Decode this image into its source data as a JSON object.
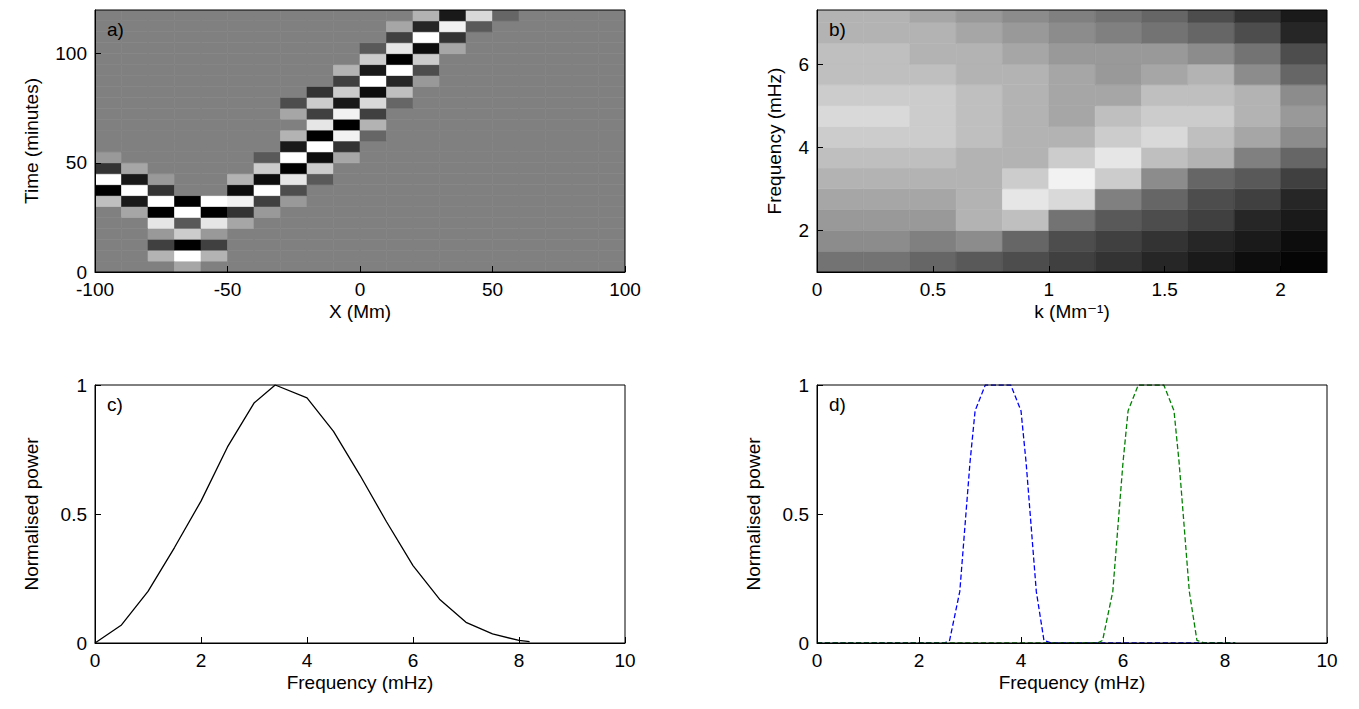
{
  "chart_data": [
    {
      "type": "heatmap",
      "panel": "a)",
      "xlabel": "X (Mm)",
      "ylabel": "Time (minutes)",
      "xlim": [
        -100,
        100
      ],
      "ylim": [
        0,
        120
      ],
      "xticks": [
        -100,
        -50,
        0,
        50,
        100
      ],
      "yticks": [
        0,
        50,
        100
      ],
      "grid": false,
      "zlim": [
        -1,
        1
      ],
      "x": [
        -95,
        -85,
        -75,
        -65,
        -55,
        -45,
        -35,
        -25,
        -15,
        -5,
        5,
        15,
        25,
        35,
        45,
        55,
        65,
        75,
        85,
        95
      ],
      "y": [
        2.5,
        7.5,
        12.5,
        17.5,
        22.5,
        27.5,
        32.5,
        37.5,
        42.5,
        47.5,
        52.5,
        57.5,
        62.5,
        67.5,
        72.5,
        77.5,
        82.5,
        87.5,
        92.5,
        97.5,
        102.5,
        107.5,
        112.5,
        117.5
      ],
      "z": [
        [
          0,
          0,
          0,
          0.3,
          0,
          0,
          0,
          0,
          0,
          0,
          0,
          0,
          0,
          0,
          0,
          0,
          0,
          0,
          0,
          0
        ],
        [
          0,
          0,
          0.4,
          1,
          0.4,
          0,
          0,
          0,
          0,
          0,
          0,
          0,
          0,
          0,
          0,
          0,
          0,
          0,
          0,
          0
        ],
        [
          0,
          0,
          -0.5,
          -1,
          -0.5,
          0,
          0,
          0,
          0,
          0,
          0,
          0,
          0,
          0,
          0,
          0,
          0,
          0,
          0,
          0
        ],
        [
          0,
          0,
          0.2,
          0.6,
          0.2,
          0,
          0,
          0,
          0,
          0,
          0,
          0,
          0,
          0,
          0,
          0,
          0,
          0,
          0,
          0
        ],
        [
          0,
          0,
          0.8,
          -0.3,
          0.8,
          0.3,
          0,
          0,
          0,
          0,
          0,
          0,
          0,
          0,
          0,
          0,
          0,
          0,
          0,
          0
        ],
        [
          0,
          0.3,
          -1,
          1,
          -1,
          -0.6,
          0.2,
          0,
          0,
          0,
          0,
          0,
          0,
          0,
          0,
          0,
          0,
          0,
          0,
          0
        ],
        [
          0.5,
          -0.8,
          1,
          -1,
          1,
          0.9,
          -0.5,
          0.2,
          0,
          0,
          0,
          0,
          0,
          0,
          0,
          0,
          0,
          0,
          0,
          0
        ],
        [
          -1,
          1,
          -0.6,
          0,
          0,
          -0.9,
          1,
          -0.4,
          0,
          0,
          0,
          0,
          0,
          0,
          0,
          0,
          0,
          0,
          0,
          0
        ],
        [
          1,
          -0.8,
          0.2,
          0,
          0,
          0.4,
          -0.9,
          0.8,
          -0.3,
          0,
          0,
          0,
          0,
          0,
          0,
          0,
          0,
          0,
          0,
          0
        ],
        [
          -0.6,
          0.3,
          0,
          0,
          0,
          0,
          0.6,
          -1,
          0.6,
          0,
          0,
          0,
          0,
          0,
          0,
          0,
          0,
          0,
          0,
          0
        ],
        [
          0.2,
          0,
          0,
          0,
          0,
          0,
          -0.3,
          1,
          -0.9,
          0.3,
          0,
          0,
          0,
          0,
          0,
          0,
          0,
          0,
          0,
          0
        ],
        [
          0,
          0,
          0,
          0,
          0,
          0,
          0,
          -0.8,
          1,
          -0.6,
          0,
          0,
          0,
          0,
          0,
          0,
          0,
          0,
          0,
          0
        ],
        [
          0,
          0,
          0,
          0,
          0,
          0,
          0,
          0.4,
          -1,
          0.9,
          -0.2,
          0,
          0,
          0,
          0,
          0,
          0,
          0,
          0,
          0
        ],
        [
          0,
          0,
          0,
          0,
          0,
          0,
          0,
          0,
          0.8,
          -1,
          0.4,
          0,
          0,
          0,
          0,
          0,
          0,
          0,
          0,
          0
        ],
        [
          0,
          0,
          0,
          0,
          0,
          0,
          0,
          0.3,
          -0.5,
          0.9,
          -0.5,
          0,
          0,
          0,
          0,
          0,
          0,
          0,
          0,
          0
        ],
        [
          0,
          0,
          0,
          0,
          0,
          0,
          0,
          -0.4,
          0.6,
          -0.8,
          0.7,
          -0.2,
          0,
          0,
          0,
          0,
          0,
          0,
          0,
          0
        ],
        [
          0,
          0,
          0,
          0,
          0,
          0,
          0,
          0,
          -0.6,
          0.6,
          -0.9,
          0.5,
          0,
          0,
          0,
          0,
          0,
          0,
          0,
          0
        ],
        [
          0,
          0,
          0,
          0,
          0,
          0,
          0,
          0,
          0,
          -0.5,
          1,
          -0.7,
          0.2,
          0,
          0,
          0,
          0,
          0,
          0,
          0
        ],
        [
          0,
          0,
          0,
          0,
          0,
          0,
          0,
          0,
          0,
          0.4,
          -0.8,
          1,
          -0.4,
          0,
          0,
          0,
          0,
          0,
          0,
          0
        ],
        [
          0,
          0,
          0,
          0,
          0,
          0,
          0,
          0,
          0,
          0,
          0.6,
          -1,
          0.6,
          0,
          0,
          0,
          0,
          0,
          0,
          0
        ],
        [
          0,
          0,
          0,
          0,
          0,
          0,
          0,
          0,
          0,
          0,
          -0.3,
          0.8,
          -0.9,
          0.3,
          0,
          0,
          0,
          0,
          0,
          0
        ],
        [
          0,
          0,
          0,
          0,
          0,
          0,
          0,
          0,
          0,
          0,
          0,
          -0.5,
          1,
          -0.6,
          0,
          0,
          0,
          0,
          0,
          0
        ],
        [
          0,
          0,
          0,
          0,
          0,
          0,
          0,
          0,
          0,
          0,
          0,
          0.3,
          -0.7,
          0.9,
          -0.3,
          0,
          0,
          0,
          0,
          0
        ],
        [
          0,
          0,
          0,
          0,
          0,
          0,
          0,
          0,
          0,
          0,
          0,
          0,
          0.4,
          -0.8,
          0.7,
          -0.2,
          0,
          0,
          0,
          0
        ]
      ]
    },
    {
      "type": "heatmap",
      "panel": "b)",
      "xlabel": "k (Mm⁻¹)",
      "ylabel": "Frequency (mHz)",
      "xlim": [
        0,
        2.2
      ],
      "ylim": [
        1,
        7.3
      ],
      "xticks": [
        0,
        0.5,
        1,
        1.5,
        2
      ],
      "yticks": [
        2,
        4,
        6
      ],
      "grid": false,
      "zlim": [
        0,
        1
      ],
      "x": [
        0.1,
        0.3,
        0.5,
        0.7,
        0.9,
        1.1,
        1.3,
        1.5,
        1.7,
        1.9,
        2.1
      ],
      "y": [
        1.25,
        1.75,
        2.25,
        2.75,
        3.25,
        3.75,
        4.25,
        4.75,
        5.25,
        5.75,
        6.25,
        6.75,
        7.25
      ],
      "z": [
        [
          0.45,
          0.45,
          0.4,
          0.35,
          0.3,
          0.25,
          0.2,
          0.15,
          0.1,
          0.05,
          0.02
        ],
        [
          0.55,
          0.55,
          0.5,
          0.55,
          0.4,
          0.3,
          0.25,
          0.2,
          0.15,
          0.1,
          0.05
        ],
        [
          0.6,
          0.6,
          0.6,
          0.7,
          0.75,
          0.45,
          0.35,
          0.3,
          0.25,
          0.15,
          0.1
        ],
        [
          0.65,
          0.65,
          0.65,
          0.7,
          0.9,
          0.85,
          0.5,
          0.4,
          0.3,
          0.25,
          0.15
        ],
        [
          0.7,
          0.7,
          0.7,
          0.7,
          0.8,
          0.95,
          0.8,
          0.55,
          0.4,
          0.35,
          0.25
        ],
        [
          0.75,
          0.75,
          0.75,
          0.7,
          0.7,
          0.8,
          0.9,
          0.75,
          0.7,
          0.5,
          0.4
        ],
        [
          0.8,
          0.8,
          0.8,
          0.75,
          0.7,
          0.7,
          0.8,
          0.85,
          0.75,
          0.65,
          0.55
        ],
        [
          0.85,
          0.85,
          0.8,
          0.75,
          0.7,
          0.65,
          0.75,
          0.8,
          0.8,
          0.7,
          0.6
        ],
        [
          0.8,
          0.8,
          0.8,
          0.75,
          0.7,
          0.65,
          0.65,
          0.75,
          0.75,
          0.7,
          0.55
        ],
        [
          0.75,
          0.75,
          0.75,
          0.7,
          0.7,
          0.65,
          0.6,
          0.65,
          0.7,
          0.55,
          0.4
        ],
        [
          0.75,
          0.75,
          0.7,
          0.7,
          0.65,
          0.6,
          0.6,
          0.6,
          0.55,
          0.45,
          0.3
        ],
        [
          0.7,
          0.7,
          0.7,
          0.65,
          0.6,
          0.55,
          0.5,
          0.45,
          0.4,
          0.3,
          0.15
        ],
        [
          0.7,
          0.7,
          0.65,
          0.6,
          0.55,
          0.5,
          0.45,
          0.4,
          0.3,
          0.2,
          0.1
        ]
      ]
    },
    {
      "type": "line",
      "panel": "c)",
      "xlabel": "Frequency (mHz)",
      "ylabel": "Normalised power",
      "xlim": [
        0,
        10
      ],
      "ylim": [
        0,
        1
      ],
      "xticks": [
        0,
        2,
        4,
        6,
        8,
        10
      ],
      "yticks": [
        0,
        0.5,
        1
      ],
      "grid": false,
      "series": [
        {
          "color": "#000000",
          "line_style": "solid",
          "x": [
            0,
            0.5,
            1,
            1.5,
            2,
            2.5,
            3,
            3.4,
            4,
            4.5,
            5,
            5.5,
            6,
            6.5,
            7,
            7.5,
            8,
            8.2
          ],
          "values": [
            0,
            0.07,
            0.2,
            0.37,
            0.55,
            0.76,
            0.93,
            1,
            0.95,
            0.82,
            0.65,
            0.47,
            0.3,
            0.17,
            0.08,
            0.035,
            0.01,
            0.005
          ]
        }
      ]
    },
    {
      "type": "line",
      "panel": "d)",
      "xlabel": "Frequency (mHz)",
      "ylabel": "Normalised power",
      "xlim": [
        0,
        10
      ],
      "ylim": [
        0,
        1
      ],
      "xticks": [
        0,
        2,
        4,
        6,
        8,
        10
      ],
      "yticks": [
        0,
        0.5,
        1
      ],
      "grid": false,
      "series": [
        {
          "color": "#0000ff",
          "line_style": "dashed",
          "x": [
            0,
            2.5,
            2.6,
            2.8,
            3.0,
            3.1,
            3.3,
            3.8,
            4.0,
            4.1,
            4.3,
            4.45,
            4.6,
            8.2
          ],
          "values": [
            0,
            0,
            0.01,
            0.2,
            0.7,
            0.9,
            1,
            1,
            0.9,
            0.7,
            0.2,
            0.01,
            0,
            0
          ]
        },
        {
          "color": "#008000",
          "line_style": "dashed",
          "x": [
            0,
            5.5,
            5.6,
            5.8,
            6.0,
            6.1,
            6.3,
            6.8,
            7.0,
            7.1,
            7.3,
            7.45,
            7.6,
            8.2
          ],
          "values": [
            0,
            0,
            0.01,
            0.2,
            0.7,
            0.9,
            1,
            1,
            0.9,
            0.7,
            0.2,
            0.01,
            0,
            0
          ]
        }
      ]
    }
  ]
}
